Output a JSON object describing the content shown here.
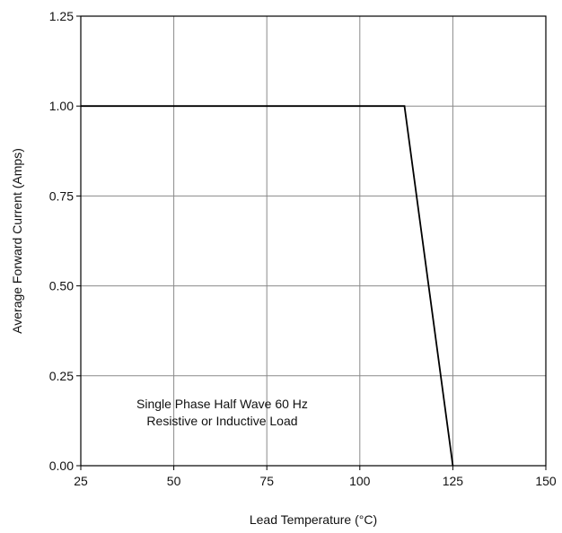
{
  "chart_data": {
    "type": "line",
    "title": "",
    "xlabel": "Lead Temperature (°C)",
    "ylabel": "Average Forward Current (Amps)",
    "xlim": [
      25,
      150
    ],
    "ylim": [
      0,
      1.25
    ],
    "xticks": [
      25,
      50,
      75,
      100,
      125,
      150
    ],
    "xtick_labels": [
      "25",
      "50",
      "75",
      "100",
      "125",
      "150"
    ],
    "yticks": [
      0,
      0.25,
      0.5,
      0.75,
      1.0,
      1.25
    ],
    "ytick_labels": [
      "0.00",
      "0.25",
      "0.50",
      "0.75",
      "1.00",
      "1.25"
    ],
    "grid": true,
    "legend": "none",
    "series": [
      {
        "x": [
          25,
          112,
          125
        ],
        "y": [
          1.0,
          1.0,
          0.0
        ],
        "color": "#000000"
      }
    ],
    "annotations": [
      {
        "lines": [
          "Single Phase Half Wave 60 Hz",
          "Resistive or Inductive Load"
        ],
        "x": 63,
        "y": 0.15
      }
    ],
    "colors": {
      "grid": "#8a8a8a",
      "line": "#000000",
      "frame": "#000000"
    }
  }
}
